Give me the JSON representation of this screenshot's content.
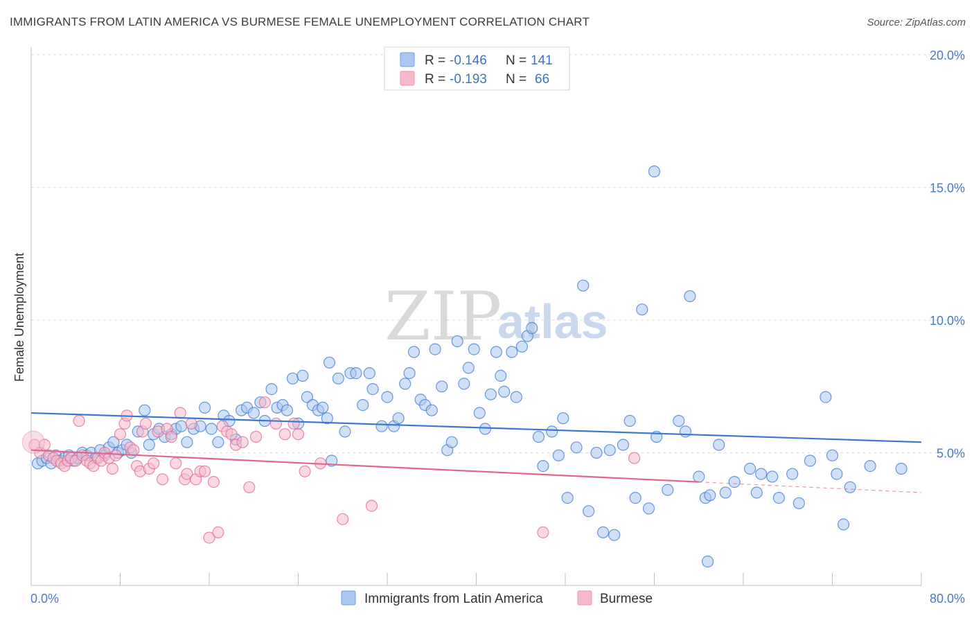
{
  "header": {
    "title": "IMMIGRANTS FROM LATIN AMERICA VS BURMESE FEMALE UNEMPLOYMENT CORRELATION CHART",
    "source": "Source: ZipAtlas.com"
  },
  "watermark": {
    "part1": "ZIP",
    "part2": "atlas"
  },
  "legend": {
    "rows": [
      {
        "r_label": "R =",
        "r_value": "-0.146",
        "n_label": "N =",
        "n_value": "141",
        "color": "#a9c7ef"
      },
      {
        "r_label": "R =",
        "r_value": "-0.193",
        "n_label": "N =",
        "n_value": "66",
        "color": "#f6b9cc"
      }
    ]
  },
  "chart_data": {
    "type": "scatter",
    "ylabel": "Female Unemployment",
    "xlim": [
      0,
      80
    ],
    "ylim": [
      0,
      20
    ],
    "x_tick_labels": [
      "0.0%",
      "80.0%"
    ],
    "y_ticks": [
      {
        "value": 5,
        "label": "5.0%"
      },
      {
        "value": 10,
        "label": "10.0%"
      },
      {
        "value": 15,
        "label": "15.0%"
      },
      {
        "value": 20,
        "label": "20.0%"
      }
    ],
    "grid": "horizontal dashed",
    "legend_position": "top-center",
    "series": [
      {
        "name": "Immigrants from Latin America",
        "color": "#3b78cf",
        "fill": "#a9c7ef",
        "trend": {
          "x0": 0,
          "y0": 6.5,
          "x1": 80,
          "y1": 5.4
        },
        "points": [
          [
            0.6,
            4.6
          ],
          [
            1.0,
            4.7
          ],
          [
            1.4,
            4.8
          ],
          [
            1.8,
            4.6
          ],
          [
            2.2,
            4.9
          ],
          [
            2.6,
            4.7
          ],
          [
            3.0,
            4.8
          ],
          [
            3.4,
            4.9
          ],
          [
            3.8,
            4.7
          ],
          [
            4.2,
            4.8
          ],
          [
            4.6,
            5.0
          ],
          [
            5.0,
            4.9
          ],
          [
            5.4,
            5.0
          ],
          [
            5.8,
            4.8
          ],
          [
            6.2,
            5.1
          ],
          [
            6.6,
            4.9
          ],
          [
            7.0,
            5.2
          ],
          [
            7.4,
            5.4
          ],
          [
            7.8,
            5.0
          ],
          [
            8.2,
            5.1
          ],
          [
            8.6,
            5.3
          ],
          [
            9.0,
            5.0
          ],
          [
            9.6,
            5.8
          ],
          [
            10.2,
            6.6
          ],
          [
            10.6,
            5.3
          ],
          [
            11.0,
            5.7
          ],
          [
            11.5,
            5.9
          ],
          [
            12.0,
            5.6
          ],
          [
            12.6,
            5.7
          ],
          [
            13.0,
            5.9
          ],
          [
            13.5,
            6.0
          ],
          [
            14.0,
            5.4
          ],
          [
            14.6,
            5.9
          ],
          [
            15.2,
            6.0
          ],
          [
            15.6,
            6.7
          ],
          [
            16.2,
            5.9
          ],
          [
            16.8,
            5.4
          ],
          [
            17.3,
            6.4
          ],
          [
            17.8,
            6.2
          ],
          [
            18.4,
            5.5
          ],
          [
            18.9,
            6.6
          ],
          [
            19.4,
            6.7
          ],
          [
            20.0,
            6.5
          ],
          [
            20.6,
            6.9
          ],
          [
            21.0,
            6.2
          ],
          [
            21.6,
            7.4
          ],
          [
            22.1,
            6.7
          ],
          [
            22.6,
            6.8
          ],
          [
            23.0,
            6.6
          ],
          [
            23.5,
            7.8
          ],
          [
            24.0,
            6.1
          ],
          [
            24.4,
            7.9
          ],
          [
            24.8,
            7.1
          ],
          [
            25.3,
            6.8
          ],
          [
            25.8,
            6.6
          ],
          [
            26.2,
            6.7
          ],
          [
            26.6,
            6.3
          ],
          [
            26.8,
            8.4
          ],
          [
            27.6,
            7.8
          ],
          [
            28.2,
            5.8
          ],
          [
            28.7,
            8.0
          ],
          [
            29.2,
            8.0
          ],
          [
            29.8,
            6.8
          ],
          [
            30.4,
            8.0
          ],
          [
            30.7,
            7.4
          ],
          [
            31.5,
            6.0
          ],
          [
            32.0,
            7.1
          ],
          [
            32.6,
            6.0
          ],
          [
            33.0,
            6.3
          ],
          [
            33.6,
            7.6
          ],
          [
            34.0,
            8.0
          ],
          [
            34.4,
            8.8
          ],
          [
            35.0,
            7.0
          ],
          [
            35.4,
            6.8
          ],
          [
            36.0,
            6.6
          ],
          [
            36.3,
            8.9
          ],
          [
            36.9,
            7.5
          ],
          [
            37.4,
            5.1
          ],
          [
            37.8,
            5.4
          ],
          [
            38.3,
            9.2
          ],
          [
            38.9,
            7.6
          ],
          [
            39.3,
            8.2
          ],
          [
            39.8,
            8.9
          ],
          [
            40.3,
            6.5
          ],
          [
            40.8,
            5.9
          ],
          [
            41.3,
            7.2
          ],
          [
            41.8,
            8.8
          ],
          [
            42.2,
            7.9
          ],
          [
            42.5,
            7.3
          ],
          [
            43.2,
            8.8
          ],
          [
            43.6,
            7.1
          ],
          [
            44.1,
            9.0
          ],
          [
            44.6,
            9.4
          ],
          [
            45.0,
            9.7
          ],
          [
            45.6,
            5.6
          ],
          [
            46.0,
            4.5
          ],
          [
            46.8,
            5.8
          ],
          [
            47.4,
            4.9
          ],
          [
            47.8,
            6.3
          ],
          [
            48.2,
            3.3
          ],
          [
            49.0,
            5.2
          ],
          [
            49.6,
            11.3
          ],
          [
            50.1,
            2.8
          ],
          [
            50.8,
            5.0
          ],
          [
            51.4,
            2.0
          ],
          [
            52.0,
            5.1
          ],
          [
            52.4,
            1.9
          ],
          [
            53.2,
            5.3
          ],
          [
            53.8,
            6.2
          ],
          [
            54.3,
            3.3
          ],
          [
            54.9,
            10.4
          ],
          [
            55.5,
            2.9
          ],
          [
            56.2,
            5.6
          ],
          [
            57.2,
            3.6
          ],
          [
            58.2,
            6.2
          ],
          [
            58.8,
            5.8
          ],
          [
            59.2,
            10.9
          ],
          [
            60.0,
            4.1
          ],
          [
            60.6,
            3.3
          ],
          [
            61.0,
            3.4
          ],
          [
            61.8,
            5.3
          ],
          [
            62.4,
            3.5
          ],
          [
            63.2,
            3.9
          ],
          [
            64.6,
            4.4
          ],
          [
            65.2,
            3.5
          ],
          [
            65.6,
            4.2
          ],
          [
            66.6,
            4.1
          ],
          [
            67.2,
            3.3
          ],
          [
            68.4,
            4.2
          ],
          [
            69.0,
            3.1
          ],
          [
            70.0,
            4.7
          ],
          [
            71.4,
            7.1
          ],
          [
            72.0,
            4.9
          ],
          [
            72.4,
            4.2
          ],
          [
            73.0,
            2.3
          ],
          [
            73.6,
            3.7
          ],
          [
            75.4,
            4.5
          ],
          [
            78.2,
            4.4
          ],
          [
            56.0,
            15.6
          ],
          [
            60.8,
            0.9
          ],
          [
            27.0,
            4.7
          ]
        ]
      },
      {
        "name": "Burmese",
        "color": "#e0658f",
        "fill": "#f6b9cc",
        "trend": {
          "x0": 0,
          "y0": 5.1,
          "x1": 60,
          "y1": 3.9,
          "dash_to_x": 80,
          "dash_to_y": 3.5
        },
        "points": [
          [
            0.3,
            5.3
          ],
          [
            0.8,
            5.0
          ],
          [
            1.2,
            5.3
          ],
          [
            1.6,
            4.9
          ],
          [
            2.0,
            4.8
          ],
          [
            2.3,
            4.7
          ],
          [
            2.7,
            4.6
          ],
          [
            3.0,
            4.5
          ],
          [
            3.3,
            4.7
          ],
          [
            3.6,
            4.8
          ],
          [
            4.0,
            4.7
          ],
          [
            4.3,
            6.2
          ],
          [
            4.6,
            4.9
          ],
          [
            5.0,
            4.7
          ],
          [
            5.3,
            4.6
          ],
          [
            5.6,
            4.5
          ],
          [
            6.0,
            4.8
          ],
          [
            6.3,
            4.7
          ],
          [
            6.6,
            5.0
          ],
          [
            7.0,
            4.8
          ],
          [
            7.3,
            4.4
          ],
          [
            7.6,
            4.9
          ],
          [
            8.0,
            5.7
          ],
          [
            8.4,
            6.1
          ],
          [
            8.6,
            6.4
          ],
          [
            8.9,
            5.2
          ],
          [
            9.2,
            5.1
          ],
          [
            9.5,
            4.5
          ],
          [
            9.8,
            4.3
          ],
          [
            10.0,
            5.8
          ],
          [
            10.3,
            6.1
          ],
          [
            10.6,
            4.4
          ],
          [
            11.0,
            4.6
          ],
          [
            11.4,
            5.8
          ],
          [
            11.8,
            4.0
          ],
          [
            12.2,
            5.9
          ],
          [
            12.6,
            5.6
          ],
          [
            13.0,
            4.6
          ],
          [
            13.4,
            6.5
          ],
          [
            13.8,
            4.0
          ],
          [
            14.0,
            4.2
          ],
          [
            14.4,
            6.1
          ],
          [
            14.8,
            4.0
          ],
          [
            15.2,
            4.3
          ],
          [
            15.6,
            4.3
          ],
          [
            16.0,
            1.8
          ],
          [
            16.4,
            3.9
          ],
          [
            16.8,
            2.0
          ],
          [
            17.2,
            6.0
          ],
          [
            17.6,
            5.8
          ],
          [
            18.0,
            5.7
          ],
          [
            18.4,
            5.3
          ],
          [
            19.0,
            5.4
          ],
          [
            19.6,
            3.7
          ],
          [
            20.2,
            5.6
          ],
          [
            21.0,
            6.9
          ],
          [
            22.0,
            6.1
          ],
          [
            22.8,
            5.7
          ],
          [
            23.6,
            6.1
          ],
          [
            24.0,
            5.7
          ],
          [
            24.6,
            4.3
          ],
          [
            26.0,
            4.6
          ],
          [
            28.0,
            2.5
          ],
          [
            30.6,
            3.0
          ],
          [
            46.0,
            2.0
          ],
          [
            54.2,
            4.8
          ]
        ]
      }
    ]
  }
}
